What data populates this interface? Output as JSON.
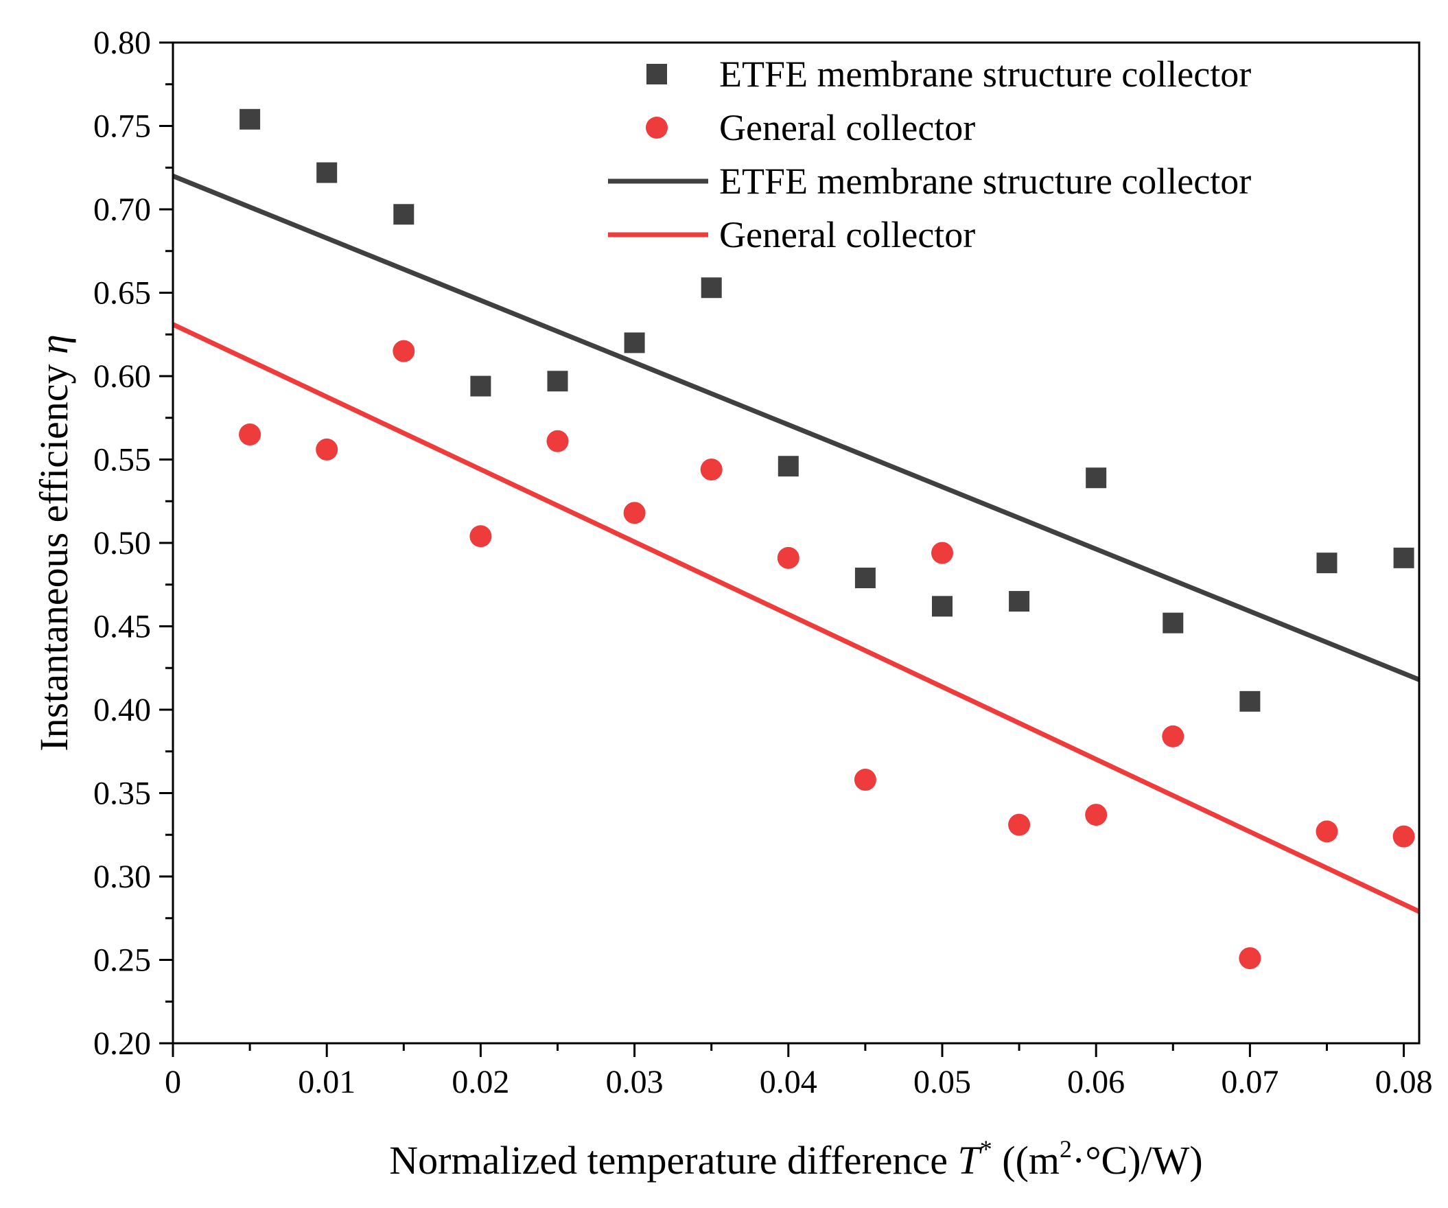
{
  "chart_data": {
    "type": "scatter",
    "xlabel": {
      "prefix": "Normalized temperature difference ",
      "symbol": "T",
      "symbol_sup": "*",
      "unit_before_sup": " ((m",
      "unit_sup": "2",
      "unit_after_sup": "·°C)/W)"
    },
    "ylabel": {
      "text": "Instantaneous efficiency ",
      "symbol": "η"
    },
    "xlim": [
      0,
      0.081
    ],
    "ylim": [
      0.2,
      0.8
    ],
    "x_ticks": [
      0,
      0.01,
      0.02,
      0.03,
      0.04,
      0.05,
      0.06,
      0.07,
      0.08
    ],
    "x_tick_labels": [
      "0",
      "0.01",
      "0.02",
      "0.03",
      "0.04",
      "0.05",
      "0.06",
      "0.07",
      "0.08"
    ],
    "y_ticks": [
      0.2,
      0.25,
      0.3,
      0.35,
      0.4,
      0.45,
      0.5,
      0.55,
      0.6,
      0.65,
      0.7,
      0.75,
      0.8
    ],
    "y_tick_labels": [
      "0.20",
      "0.25",
      "0.30",
      "0.35",
      "0.40",
      "0.45",
      "0.50",
      "0.55",
      "0.60",
      "0.65",
      "0.70",
      "0.75",
      "0.80"
    ],
    "grid": false,
    "legend_position": "top-right",
    "series": [
      {
        "name": "ETFE membrane structure collector",
        "kind": "scatter",
        "marker": "square",
        "color": "#404040",
        "x": [
          0.005,
          0.01,
          0.015,
          0.02,
          0.025,
          0.03,
          0.035,
          0.04,
          0.045,
          0.05,
          0.055,
          0.06,
          0.065,
          0.07,
          0.075,
          0.08
        ],
        "y": [
          0.754,
          0.722,
          0.697,
          0.594,
          0.597,
          0.62,
          0.653,
          0.546,
          0.479,
          0.462,
          0.465,
          0.539,
          0.452,
          0.405,
          0.488,
          0.491
        ]
      },
      {
        "name": "General collector",
        "kind": "scatter",
        "marker": "circle",
        "color": "#ee3b3b",
        "x": [
          0.005,
          0.01,
          0.015,
          0.02,
          0.025,
          0.03,
          0.035,
          0.04,
          0.045,
          0.05,
          0.055,
          0.06,
          0.065,
          0.07,
          0.075,
          0.08
        ],
        "y": [
          0.565,
          0.556,
          0.615,
          0.504,
          0.561,
          0.518,
          0.544,
          0.491,
          0.358,
          0.494,
          0.331,
          0.337,
          0.384,
          0.251,
          0.327,
          0.324
        ]
      },
      {
        "name": "ETFE membrane structure collector",
        "kind": "line",
        "color": "#404040",
        "x": [
          0,
          0.081
        ],
        "y": [
          0.72,
          0.418
        ]
      },
      {
        "name": "General collector",
        "kind": "line",
        "color": "#ee3b3b",
        "x": [
          0,
          0.081
        ],
        "y": [
          0.631,
          0.279
        ]
      }
    ]
  }
}
